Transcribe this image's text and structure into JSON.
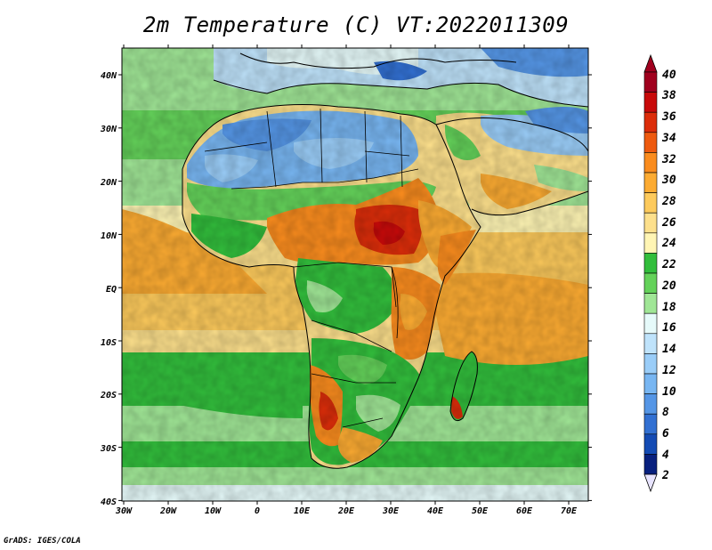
{
  "title": "2m Temperature (C) VT:2022011309",
  "credit": "GrADS: IGES/COLA",
  "map": {
    "region": "Africa",
    "variable": "2m temperature",
    "units": "C",
    "lat_labels": [
      "40N",
      "30N",
      "20N",
      "10N",
      "EQ",
      "10S",
      "20S",
      "30S",
      "40S"
    ],
    "lon_labels": [
      "30W",
      "20W",
      "10W",
      "0",
      "10E",
      "20E",
      "30E",
      "40E",
      "50E",
      "60E",
      "70E"
    ],
    "lon_range": [
      -30,
      75
    ],
    "lat_range": [
      -40,
      45
    ]
  },
  "colorbar": {
    "labels": [
      "40",
      "38",
      "36",
      "34",
      "32",
      "30",
      "28",
      "26",
      "24",
      "22",
      "20",
      "18",
      "16",
      "14",
      "12",
      "10",
      "8",
      "6",
      "4",
      "2"
    ],
    "colors": [
      "#a0001e",
      "#c80a0a",
      "#dc2d0a",
      "#ee5a0f",
      "#fa8c1e",
      "#fcab32",
      "#fdca5c",
      "#fde08c",
      "#fff5b4",
      "#32be3c",
      "#64d25a",
      "#a0e696",
      "#e6fafa",
      "#bfe3fb",
      "#9acdf8",
      "#78b6f2",
      "#5596e6",
      "#3270d2",
      "#144bb4",
      "#08207e"
    ]
  }
}
